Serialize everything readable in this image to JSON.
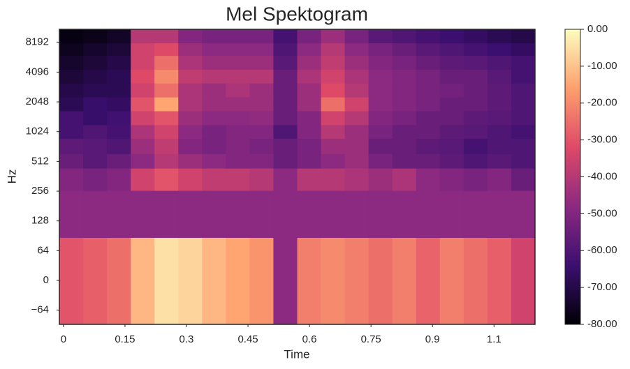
{
  "chart_data": {
    "type": "heatmap",
    "title": "Mel Spektogram",
    "x_label": "Time",
    "y_label": "Hz",
    "x_bins": [
      -0.01,
      0.048,
      0.106,
      0.164,
      0.222,
      0.28,
      0.338,
      0.396,
      0.454,
      0.512,
      0.57,
      0.628,
      0.686,
      0.744,
      0.802,
      0.86,
      0.918,
      0.976,
      1.034,
      1.092,
      1.15
    ],
    "y_bins": [
      -89,
      87,
      260,
      437,
      613,
      873,
      1200,
      1660,
      2290,
      3170,
      4360,
      6030,
      8070,
      11100
    ],
    "z": [
      [
        -30,
        -28,
        -25,
        -12,
        -5,
        -7,
        -12,
        -15,
        -18,
        -48,
        -22,
        -20,
        -22,
        -25,
        -22,
        -27,
        -22,
        -25,
        -28,
        -35
      ],
      [
        -48,
        -48,
        -48,
        -48,
        -48,
        -48,
        -48,
        -48,
        -48,
        -48,
        -48,
        -48,
        -48,
        -48,
        -48,
        -48,
        -48,
        -48,
        -48,
        -48
      ],
      [
        -50,
        -52,
        -50,
        -35,
        -30,
        -35,
        -38,
        -38,
        -40,
        -48,
        -40,
        -40,
        -42,
        -45,
        -42,
        -48,
        -50,
        -52,
        -50,
        -55
      ],
      [
        -55,
        -58,
        -55,
        -48,
        -40,
        -45,
        -48,
        -50,
        -50,
        -55,
        -52,
        -48,
        -45,
        -52,
        -55,
        -55,
        -57,
        -60,
        -58,
        -60
      ],
      [
        -57,
        -58,
        -60,
        -45,
        -38,
        -50,
        -52,
        -50,
        -52,
        -55,
        -52,
        -45,
        -45,
        -55,
        -55,
        -57,
        -58,
        -62,
        -60,
        -60
      ],
      [
        -62,
        -60,
        -62,
        -42,
        -35,
        -48,
        -52,
        -50,
        -50,
        -60,
        -50,
        -40,
        -45,
        -52,
        -55,
        -55,
        -57,
        -58,
        -60,
        -62
      ],
      [
        -62,
        -65,
        -63,
        -35,
        -30,
        -45,
        -48,
        -48,
        -47,
        -55,
        -50,
        -35,
        -40,
        -50,
        -52,
        -55,
        -55,
        -57,
        -58,
        -60
      ],
      [
        -68,
        -65,
        -66,
        -30,
        -15,
        -42,
        -45,
        -45,
        -45,
        -55,
        -45,
        -25,
        -35,
        -48,
        -50,
        -52,
        -55,
        -55,
        -57,
        -60
      ],
      [
        -70,
        -68,
        -68,
        -35,
        -25,
        -42,
        -45,
        -42,
        -45,
        -55,
        -45,
        -32,
        -40,
        -48,
        -50,
        -52,
        -53,
        -55,
        -57,
        -60
      ],
      [
        -72,
        -70,
        -68,
        -32,
        -20,
        -38,
        -40,
        -40,
        -40,
        -55,
        -42,
        -35,
        -42,
        -48,
        -50,
        -52,
        -55,
        -55,
        -58,
        -62
      ],
      [
        -74,
        -72,
        -70,
        -35,
        -25,
        -42,
        -45,
        -45,
        -45,
        -58,
        -45,
        -38,
        -45,
        -50,
        -52,
        -55,
        -57,
        -58,
        -60,
        -62
      ],
      [
        -76,
        -74,
        -72,
        -35,
        -32,
        -45,
        -48,
        -48,
        -48,
        -60,
        -48,
        -40,
        -48,
        -52,
        -55,
        -58,
        -60,
        -62,
        -64,
        -66
      ],
      [
        -78,
        -77,
        -75,
        -40,
        -40,
        -50,
        -52,
        -52,
        -52,
        -62,
        -52,
        -45,
        -52,
        -58,
        -60,
        -62,
        -64,
        -66,
        -68,
        -70
      ]
    ],
    "xlim": [
      -0.01,
      1.15
    ],
    "xticks": [
      0,
      0.15,
      0.3,
      0.45,
      0.6,
      0.75,
      0.9,
      {
        "value": 1.05,
        "label": "1.1"
      }
    ],
    "ylim": [
      -89,
      11100
    ],
    "yscale": "symlog",
    "linthresh": 64,
    "yticks": [
      {
        "value": -64,
        "label": "−64"
      },
      0,
      64,
      128,
      256,
      512,
      1024,
      2048,
      4096,
      8192
    ],
    "colormap": [
      "#000004",
      "#3b0f70",
      "#8c2981",
      "#de4968",
      "#fe9f6d",
      "#fcfdbf"
    ],
    "clim": [
      -80,
      0
    ],
    "cticks": [
      {
        "value": 0,
        "label": "0.00"
      },
      {
        "value": -10,
        "label": "-10.00"
      },
      {
        "value": -20,
        "label": "-20.00"
      },
      {
        "value": -30,
        "label": "-30.00"
      },
      {
        "value": -40,
        "label": "-40.00"
      },
      {
        "value": -50,
        "label": "-50.00"
      },
      {
        "value": -60,
        "label": "-60.00"
      },
      {
        "value": -70,
        "label": "-70.00"
      },
      {
        "value": -80,
        "label": "-80.00"
      }
    ]
  }
}
